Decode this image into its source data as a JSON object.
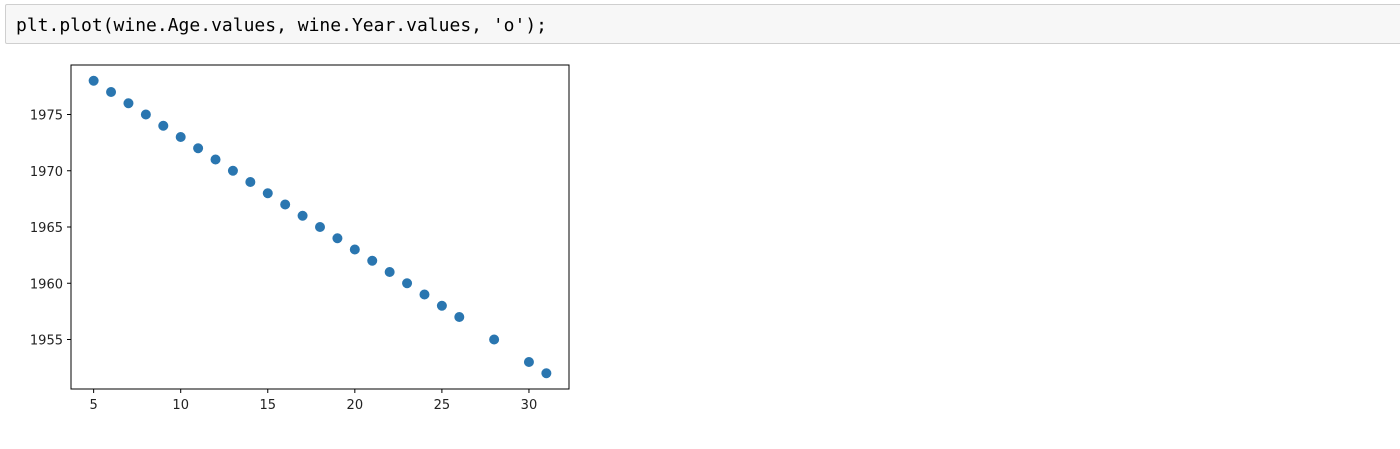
{
  "code_cell": {
    "source": "plt.plot(wine.Age.values, wine.Year.values, 'o');"
  },
  "colors": {
    "marker": "#2a76b0",
    "cell_background": "#f7f7f7",
    "cell_border": "#cfcfcf"
  },
  "chart_data": {
    "type": "scatter",
    "title": "",
    "xlabel": "",
    "ylabel": "",
    "grid": false,
    "legend": "none",
    "xlim": [
      3.7,
      32.3
    ],
    "ylim": [
      1950.6,
      1979.4
    ],
    "xticks": [
      5,
      10,
      15,
      20,
      25,
      30
    ],
    "yticks": [
      1955,
      1960,
      1965,
      1970,
      1975
    ],
    "series": [
      {
        "points": [
          {
            "x": 5,
            "y": 1978
          },
          {
            "x": 6,
            "y": 1977
          },
          {
            "x": 7,
            "y": 1976
          },
          {
            "x": 8,
            "y": 1975
          },
          {
            "x": 9,
            "y": 1974
          },
          {
            "x": 10,
            "y": 1973
          },
          {
            "x": 11,
            "y": 1972
          },
          {
            "x": 12,
            "y": 1971
          },
          {
            "x": 13,
            "y": 1970
          },
          {
            "x": 14,
            "y": 1969
          },
          {
            "x": 15,
            "y": 1968
          },
          {
            "x": 16,
            "y": 1967
          },
          {
            "x": 17,
            "y": 1966
          },
          {
            "x": 18,
            "y": 1965
          },
          {
            "x": 19,
            "y": 1964
          },
          {
            "x": 20,
            "y": 1963
          },
          {
            "x": 21,
            "y": 1962
          },
          {
            "x": 22,
            "y": 1961
          },
          {
            "x": 23,
            "y": 1960
          },
          {
            "x": 24,
            "y": 1959
          },
          {
            "x": 25,
            "y": 1958
          },
          {
            "x": 26,
            "y": 1957
          },
          {
            "x": 28,
            "y": 1955
          },
          {
            "x": 30,
            "y": 1953
          },
          {
            "x": 31,
            "y": 1952
          }
        ]
      }
    ]
  }
}
